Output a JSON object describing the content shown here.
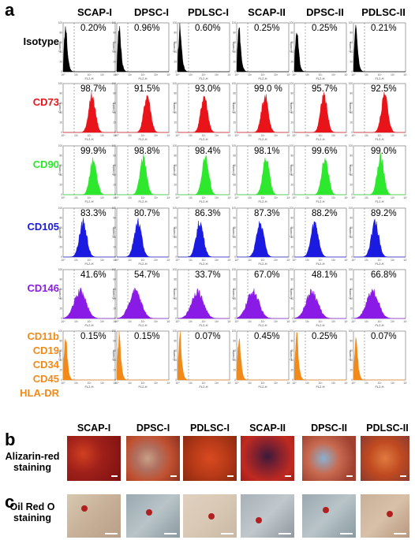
{
  "panels": {
    "a": "a",
    "b": "b",
    "c": "c"
  },
  "columns": [
    "SCAP-I",
    "DPSC-I",
    "PDLSC-I",
    "SCAP-II",
    "DPSC-II",
    "PDLSC-II"
  ],
  "axis_texts": {
    "ylabel": "Counts",
    "xlabel": "FL2-H",
    "yticks": [
      "0",
      "20",
      "40",
      "60",
      "80",
      "100"
    ],
    "xticks": [
      "10⁰",
      "10¹",
      "10²",
      "10³",
      "10⁴"
    ]
  },
  "rows": [
    {
      "label": "Isotype",
      "lines": [
        "Isotype"
      ],
      "color": "#000000",
      "shape": "iso",
      "values": [
        "0.20%",
        "0.96%",
        "0.60%",
        "0.25%",
        "0.25%",
        "0.21%"
      ]
    },
    {
      "label": "CD73",
      "lines": [
        "CD73"
      ],
      "color": "#e8141a",
      "shape": "high",
      "values": [
        "98.7%",
        "91.5%",
        "93.0%",
        "99.0 %",
        "95.7%",
        "92.5%"
      ]
    },
    {
      "label": "CD90",
      "lines": [
        "CD90"
      ],
      "color": "#2ee82e",
      "shape": "high",
      "values": [
        "99.9%",
        "98.8%",
        "98.4%",
        "98.1%",
        "99.6%",
        "99.0%"
      ]
    },
    {
      "label": "CD105",
      "lines": [
        "CD105"
      ],
      "color": "#1a1ae0",
      "shape": "mid",
      "values": [
        "83.3%",
        "80.7%",
        "86.3%",
        "87.3%",
        "88.2%",
        "89.2%"
      ]
    },
    {
      "label": "CD146",
      "lines": [
        "CD146"
      ],
      "color": "#8a1ae6",
      "shape": "broad",
      "values": [
        "41.6%",
        "54.7%",
        "33.7%",
        "67.0%",
        "48.1%",
        "66.8%"
      ]
    },
    {
      "label": "CD11b CD19 CD34 CD45 HLA-DR",
      "lines": [
        "CD11b",
        "CD19",
        "CD34",
        "CD45",
        "HLA-DR"
      ],
      "color": "#f28a1a",
      "shape": "iso",
      "values": [
        "0.15%",
        "0.15%",
        "0.07%",
        "0.45%",
        "0.25%",
        "0.07%"
      ]
    }
  ],
  "stains": [
    {
      "lines": [
        "Alizarin-red",
        "staining"
      ]
    },
    {
      "lines": [
        "Oil Red O",
        "staining"
      ]
    }
  ]
}
